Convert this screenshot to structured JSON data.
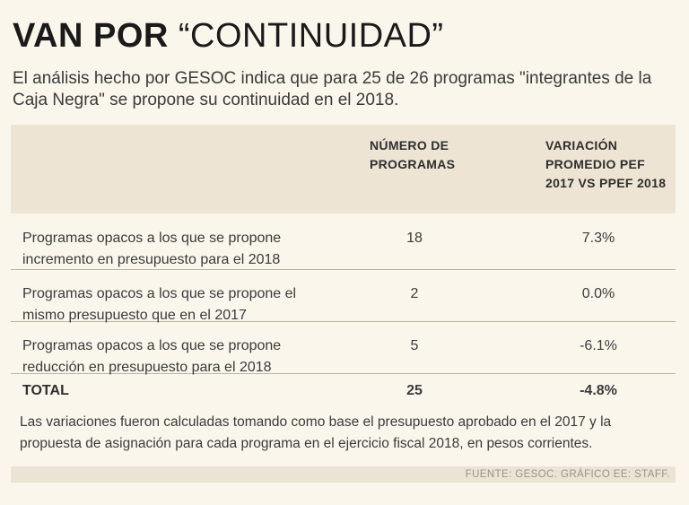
{
  "title": {
    "bold": "VAN POR",
    "light": "“CONTINUIDAD”"
  },
  "intro": "El análisis hecho por GESOC indica que para 25 de 26 programas \"integrantes de la Caja Negra\" se propone su continuidad en el 2018.",
  "table": {
    "headers": {
      "col1": "NÚMERO DE PROGRAMAS",
      "col2": "VARIACIÓN PROMEDIO PEF 2017 VS PPEF 2018"
    },
    "rows": [
      {
        "label": "Programas opacos a los que se propone incremento en presupuesto para el 2018",
        "count": "18",
        "variation": "7.3%"
      },
      {
        "label": "Programas opacos a los que se propone el mismo presupuesto que en el 2017",
        "count": "2",
        "variation": "0.0%"
      },
      {
        "label": "Programas opacos a los que se propone reducción en presupuesto para el 2018",
        "count": "5",
        "variation": "-6.1%"
      }
    ],
    "total": {
      "label": "TOTAL",
      "count": "25",
      "variation": "-4.8%"
    }
  },
  "note": "Las variaciones fueron calculadas tomando como base el presupuesto aprobado en el 2017 y la propuesta de asignación para cada programa en el ejercicio fiscal 2018, en pesos corrientes.",
  "source": "FUENTE: GESOC. GRÁFICO EE: STAFF."
}
